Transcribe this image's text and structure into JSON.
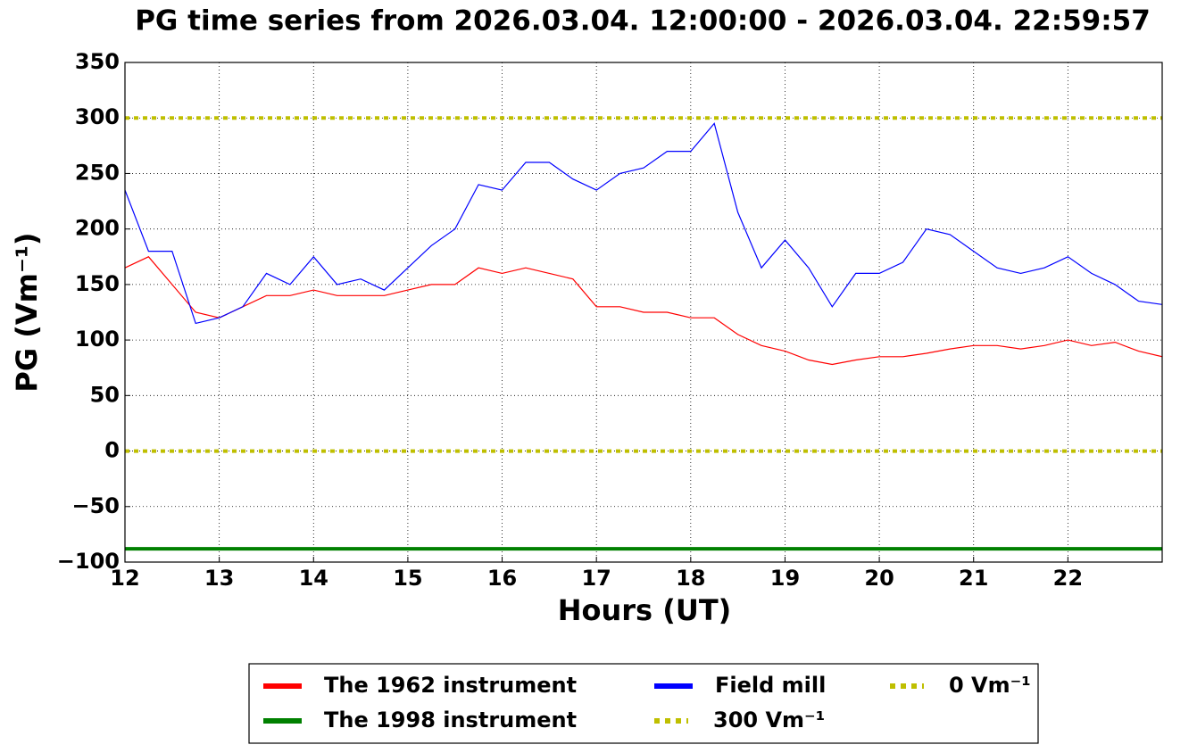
{
  "chart_data": {
    "type": "line",
    "title": "PG time series from 2026.03.04. 12:00:00 - 2026.03.04. 22:59:57",
    "x_label": "Hours (UT)",
    "y_label": "PG (Vm⁻¹)",
    "xlim": [
      12,
      23
    ],
    "ylim": [
      -100,
      350
    ],
    "xticks": [
      12,
      13,
      14,
      15,
      16,
      17,
      18,
      19,
      20,
      21,
      22
    ],
    "yticks": [
      {
        "value": -100,
        "label": "−100"
      },
      {
        "value": -50,
        "label": "−50"
      },
      0,
      50,
      100,
      150,
      200,
      250,
      300,
      350
    ],
    "grid": true,
    "legend": "below",
    "x": [
      12.0,
      12.25,
      12.5,
      12.75,
      13.0,
      13.25,
      13.5,
      13.75,
      14.0,
      14.25,
      14.5,
      14.75,
      15.0,
      15.25,
      15.5,
      15.75,
      16.0,
      16.25,
      16.5,
      16.75,
      17.0,
      17.25,
      17.5,
      17.75,
      18.0,
      18.25,
      18.5,
      18.75,
      19.0,
      19.25,
      19.5,
      19.75,
      20.0,
      20.25,
      20.5,
      20.75,
      21.0,
      21.25,
      21.5,
      21.75,
      22.0,
      22.25,
      22.5,
      22.75,
      23.0
    ],
    "series": [
      {
        "name": "The 1962 instrument",
        "color": "#ff0000",
        "width": 1.2,
        "values": [
          165,
          175,
          150,
          125,
          120,
          130,
          140,
          140,
          145,
          140,
          140,
          140,
          145,
          150,
          150,
          165,
          160,
          165,
          160,
          155,
          130,
          130,
          125,
          125,
          120,
          120,
          105,
          95,
          90,
          82,
          78,
          82,
          85,
          85,
          88,
          92,
          95,
          95,
          92,
          95,
          100,
          95,
          98,
          90,
          85
        ]
      },
      {
        "name": "The 1998 instrument",
        "color": "#008000",
        "width": 4,
        "x": [
          12,
          23
        ],
        "values": [
          -88,
          -88
        ]
      },
      {
        "name": "Field mill",
        "color": "#0000ff",
        "width": 1.2,
        "values": [
          235,
          180,
          180,
          115,
          120,
          130,
          160,
          150,
          175,
          150,
          155,
          145,
          165,
          185,
          200,
          240,
          235,
          260,
          260,
          245,
          235,
          250,
          255,
          270,
          270,
          295,
          215,
          165,
          190,
          165,
          130,
          160,
          160,
          170,
          200,
          195,
          180,
          165,
          160,
          165,
          175,
          160,
          150,
          135,
          132
        ]
      },
      {
        "name": "300 Vm⁻¹",
        "color": "#bfbf00",
        "width": 4,
        "style": "dotted",
        "x": [
          12,
          23
        ],
        "values": [
          300,
          300
        ]
      },
      {
        "name": "0 Vm⁻¹",
        "color": "#bfbf00",
        "width": 4,
        "style": "dotted",
        "x": [
          12,
          23
        ],
        "values": [
          0,
          0
        ]
      }
    ]
  }
}
